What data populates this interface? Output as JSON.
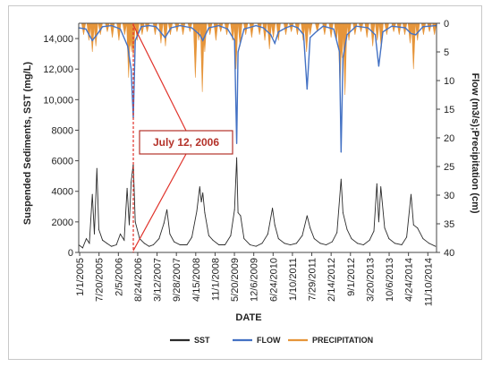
{
  "chart_data": {
    "type": "line",
    "xlabel": "DATE",
    "ylabel_left": "Suspended Sediments, SST (mg/L)",
    "ylabel_right": "Flow (m3/s);Precipitation (cm)",
    "left_axis": {
      "ylim": [
        0,
        15000
      ],
      "ticks": [
        0,
        2000,
        4000,
        6000,
        8000,
        10000,
        12000,
        14000
      ],
      "tick_labels": [
        "0",
        "2000",
        "4000",
        "6000",
        "8000",
        "10,000",
        "12,000",
        "14,000"
      ]
    },
    "right_axis": {
      "ylim": [
        0,
        40
      ],
      "reversed": true,
      "ticks": [
        0,
        5,
        10,
        15,
        20,
        25,
        30,
        35,
        40
      ],
      "tick_labels": [
        "0",
        "5",
        "10",
        "15",
        "20",
        "25",
        "30",
        "35",
        "40"
      ]
    },
    "x_range": [
      "2005-01-01",
      "2014-12-31"
    ],
    "x_tick_labels": [
      "1/1/2005",
      "7/20/2005",
      "2/5/2006",
      "8/24/2006",
      "3/12/2007",
      "9/28/2007",
      "4/15/2008",
      "11/1/2008",
      "5/20/2009",
      "12/6/2009",
      "6/24/2010",
      "1/10/2011",
      "7/29/2011",
      "2/14/2012",
      "9/1/2012",
      "3/20/2013",
      "10/6/2013",
      "4/24/2014",
      "11/10/2014"
    ],
    "legend": [
      "SST",
      "FLOW",
      "PRECIPITATION"
    ],
    "legend_position": "bottom",
    "annotation": {
      "text": "July 12, 2006",
      "date": "2006-07-12"
    },
    "series": [
      {
        "name": "SST",
        "axis": "left",
        "color": "#2b2b2b",
        "points": [
          [
            "2005-01-01",
            500
          ],
          [
            "2005-02-10",
            300
          ],
          [
            "2005-03-20",
            900
          ],
          [
            "2005-04-20",
            600
          ],
          [
            "2005-05-20",
            3800
          ],
          [
            "2005-06-10",
            1200
          ],
          [
            "2005-07-05",
            5500
          ],
          [
            "2005-07-25",
            1500
          ],
          [
            "2005-09-01",
            800
          ],
          [
            "2005-10-15",
            600
          ],
          [
            "2005-12-01",
            400
          ],
          [
            "2006-01-20",
            500
          ],
          [
            "2006-03-01",
            1200
          ],
          [
            "2006-04-10",
            800
          ],
          [
            "2006-05-10",
            4200
          ],
          [
            "2006-06-01",
            1800
          ],
          [
            "2006-06-20",
            4600
          ],
          [
            "2006-07-12",
            5800
          ],
          [
            "2006-08-01",
            2000
          ],
          [
            "2006-09-15",
            900
          ],
          [
            "2006-11-01",
            600
          ],
          [
            "2006-12-20",
            400
          ],
          [
            "2007-02-01",
            500
          ],
          [
            "2007-04-01",
            900
          ],
          [
            "2007-05-20",
            1900
          ],
          [
            "2007-06-20",
            2800
          ],
          [
            "2007-07-20",
            1200
          ],
          [
            "2007-09-01",
            700
          ],
          [
            "2007-11-01",
            500
          ],
          [
            "2008-01-10",
            500
          ],
          [
            "2008-03-01",
            1000
          ],
          [
            "2008-04-20",
            2700
          ],
          [
            "2008-05-20",
            4300
          ],
          [
            "2008-06-05",
            3300
          ],
          [
            "2008-06-20",
            3900
          ],
          [
            "2008-07-10",
            2600
          ],
          [
            "2008-08-20",
            1100
          ],
          [
            "2008-10-01",
            800
          ],
          [
            "2008-12-01",
            500
          ],
          [
            "2009-02-01",
            500
          ],
          [
            "2009-04-01",
            1100
          ],
          [
            "2009-05-10",
            2800
          ],
          [
            "2009-06-01",
            6200
          ],
          [
            "2009-06-15",
            2600
          ],
          [
            "2009-07-10",
            2400
          ],
          [
            "2009-08-15",
            900
          ],
          [
            "2009-10-15",
            500
          ],
          [
            "2009-12-15",
            400
          ],
          [
            "2010-02-15",
            600
          ],
          [
            "2010-04-15",
            1200
          ],
          [
            "2010-06-01",
            2900
          ],
          [
            "2010-06-25",
            1800
          ],
          [
            "2010-08-01",
            900
          ],
          [
            "2010-10-01",
            600
          ],
          [
            "2010-12-01",
            500
          ],
          [
            "2011-02-01",
            600
          ],
          [
            "2011-04-01",
            1100
          ],
          [
            "2011-05-20",
            2400
          ],
          [
            "2011-06-20",
            1600
          ],
          [
            "2011-08-01",
            900
          ],
          [
            "2011-10-01",
            600
          ],
          [
            "2011-12-01",
            500
          ],
          [
            "2012-02-01",
            700
          ],
          [
            "2012-03-20",
            1300
          ],
          [
            "2012-05-01",
            4800
          ],
          [
            "2012-05-20",
            2600
          ],
          [
            "2012-07-01",
            1500
          ],
          [
            "2012-08-15",
            900
          ],
          [
            "2012-10-15",
            600
          ],
          [
            "2012-12-15",
            500
          ],
          [
            "2013-02-15",
            800
          ],
          [
            "2013-04-01",
            1400
          ],
          [
            "2013-05-01",
            4500
          ],
          [
            "2013-05-20",
            2000
          ],
          [
            "2013-06-10",
            4300
          ],
          [
            "2013-07-20",
            1600
          ],
          [
            "2013-09-01",
            900
          ],
          [
            "2013-11-01",
            600
          ],
          [
            "2014-01-10",
            500
          ],
          [
            "2014-03-01",
            1000
          ],
          [
            "2014-04-15",
            3800
          ],
          [
            "2014-05-10",
            1800
          ],
          [
            "2014-06-20",
            1600
          ],
          [
            "2014-08-15",
            900
          ],
          [
            "2014-10-15",
            600
          ],
          [
            "2014-12-20",
            400
          ]
        ]
      },
      {
        "name": "FLOW",
        "axis": "right",
        "color": "#4472c4",
        "points": [
          [
            "2005-01-01",
            0.8
          ],
          [
            "2005-03-15",
            1.0
          ],
          [
            "2005-05-20",
            3.0
          ],
          [
            "2005-07-05",
            2.0
          ],
          [
            "2005-09-01",
            0.6
          ],
          [
            "2005-12-01",
            0.4
          ],
          [
            "2006-03-01",
            1.0
          ],
          [
            "2006-05-15",
            4.0
          ],
          [
            "2006-06-20",
            8.0
          ],
          [
            "2006-07-12",
            16.5
          ],
          [
            "2006-08-01",
            3.0
          ],
          [
            "2006-10-01",
            0.6
          ],
          [
            "2006-12-20",
            0.4
          ],
          [
            "2007-03-01",
            0.6
          ],
          [
            "2007-06-01",
            2.5
          ],
          [
            "2007-08-01",
            0.8
          ],
          [
            "2007-11-01",
            0.4
          ],
          [
            "2008-03-01",
            0.8
          ],
          [
            "2008-05-20",
            2.0
          ],
          [
            "2008-06-20",
            3.0
          ],
          [
            "2008-08-20",
            0.8
          ],
          [
            "2008-12-01",
            0.4
          ],
          [
            "2009-03-01",
            1.0
          ],
          [
            "2009-05-10",
            3.0
          ],
          [
            "2009-06-01",
            21.0
          ],
          [
            "2009-06-15",
            5.0
          ],
          [
            "2009-08-15",
            1.0
          ],
          [
            "2009-12-15",
            0.4
          ],
          [
            "2010-03-01",
            0.8
          ],
          [
            "2010-05-15",
            2.0
          ],
          [
            "2010-06-25",
            3.5
          ],
          [
            "2010-08-01",
            1.5
          ],
          [
            "2010-10-15",
            0.8
          ],
          [
            "2010-12-15",
            0.4
          ],
          [
            "2011-02-15",
            0.8
          ],
          [
            "2011-04-15",
            2.0
          ],
          [
            "2011-05-20",
            11.5
          ],
          [
            "2011-06-20",
            2.5
          ],
          [
            "2011-08-20",
            1.5
          ],
          [
            "2011-11-01",
            0.5
          ],
          [
            "2012-02-15",
            1.0
          ],
          [
            "2012-04-15",
            5.0
          ],
          [
            "2012-05-01",
            22.5
          ],
          [
            "2012-05-20",
            6.0
          ],
          [
            "2012-07-01",
            2.0
          ],
          [
            "2012-10-01",
            0.5
          ],
          [
            "2013-02-01",
            0.8
          ],
          [
            "2013-04-15",
            2.0
          ],
          [
            "2013-05-20",
            7.5
          ],
          [
            "2013-07-01",
            1.5
          ],
          [
            "2013-10-01",
            0.5
          ],
          [
            "2014-02-15",
            0.8
          ],
          [
            "2014-04-15",
            1.8
          ],
          [
            "2014-06-01",
            2.0
          ],
          [
            "2014-08-15",
            0.6
          ],
          [
            "2014-12-31",
            0.4
          ]
        ]
      },
      {
        "name": "PRECIPITATION",
        "axis": "right",
        "color": "#e6953a",
        "points": [
          [
            "2005-02-20",
            2.0
          ],
          [
            "2005-04-15",
            3.0
          ],
          [
            "2005-05-20",
            5.0
          ],
          [
            "2005-06-25",
            4.0
          ],
          [
            "2005-08-10",
            2.0
          ],
          [
            "2005-10-20",
            1.5
          ],
          [
            "2005-12-10",
            2.5
          ],
          [
            "2006-02-15",
            3.0
          ],
          [
            "2006-04-15",
            2.0
          ],
          [
            "2006-05-25",
            9.5
          ],
          [
            "2006-06-10",
            4.0
          ],
          [
            "2006-06-25",
            5.0
          ],
          [
            "2006-07-12",
            6.0
          ],
          [
            "2006-08-20",
            3.0
          ],
          [
            "2006-10-10",
            2.0
          ],
          [
            "2006-12-01",
            1.5
          ],
          [
            "2007-02-20",
            2.0
          ],
          [
            "2007-04-20",
            3.5
          ],
          [
            "2007-06-05",
            4.0
          ],
          [
            "2007-07-25",
            2.0
          ],
          [
            "2007-10-01",
            1.5
          ],
          [
            "2007-12-01",
            2.0
          ],
          [
            "2008-02-10",
            1.5
          ],
          [
            "2008-04-05",
            9.5
          ],
          [
            "2008-05-10",
            3.0
          ],
          [
            "2008-06-15",
            12.0
          ],
          [
            "2008-07-10",
            5.0
          ],
          [
            "2008-09-01",
            2.0
          ],
          [
            "2008-11-01",
            3.0
          ],
          [
            "2008-12-20",
            1.5
          ],
          [
            "2009-02-20",
            2.0
          ],
          [
            "2009-04-20",
            3.0
          ],
          [
            "2009-05-25",
            8.0
          ],
          [
            "2009-07-05",
            4.0
          ],
          [
            "2009-09-01",
            2.0
          ],
          [
            "2009-11-01",
            2.5
          ],
          [
            "2010-01-20",
            2.0
          ],
          [
            "2010-03-15",
            3.0
          ],
          [
            "2010-05-01",
            4.5
          ],
          [
            "2010-06-10",
            2.5
          ],
          [
            "2010-08-01",
            3.0
          ],
          [
            "2010-10-15",
            2.0
          ],
          [
            "2010-12-10",
            1.5
          ],
          [
            "2011-02-10",
            2.0
          ],
          [
            "2011-04-10",
            3.0
          ],
          [
            "2011-05-15",
            5.0
          ],
          [
            "2011-06-20",
            2.0
          ],
          [
            "2011-09-01",
            1.5
          ],
          [
            "2011-11-15",
            2.0
          ],
          [
            "2012-01-20",
            2.5
          ],
          [
            "2012-03-15",
            3.0
          ],
          [
            "2012-04-20",
            11.5
          ],
          [
            "2012-05-10",
            6.0
          ],
          [
            "2012-06-10",
            12.5
          ],
          [
            "2012-07-20",
            3.0
          ],
          [
            "2012-09-20",
            2.0
          ],
          [
            "2012-11-20",
            1.5
          ],
          [
            "2013-01-20",
            2.5
          ],
          [
            "2013-03-20",
            4.0
          ],
          [
            "2013-05-05",
            3.0
          ],
          [
            "2013-06-15",
            4.5
          ],
          [
            "2013-08-10",
            2.0
          ],
          [
            "2013-10-20",
            1.5
          ],
          [
            "2013-12-15",
            2.0
          ],
          [
            "2014-02-10",
            2.0
          ],
          [
            "2014-04-05",
            3.5
          ],
          [
            "2014-05-10",
            8.0
          ],
          [
            "2014-06-20",
            3.0
          ],
          [
            "2014-08-20",
            2.0
          ],
          [
            "2014-10-20",
            1.5
          ],
          [
            "2014-12-10",
            2.0
          ]
        ]
      }
    ]
  }
}
